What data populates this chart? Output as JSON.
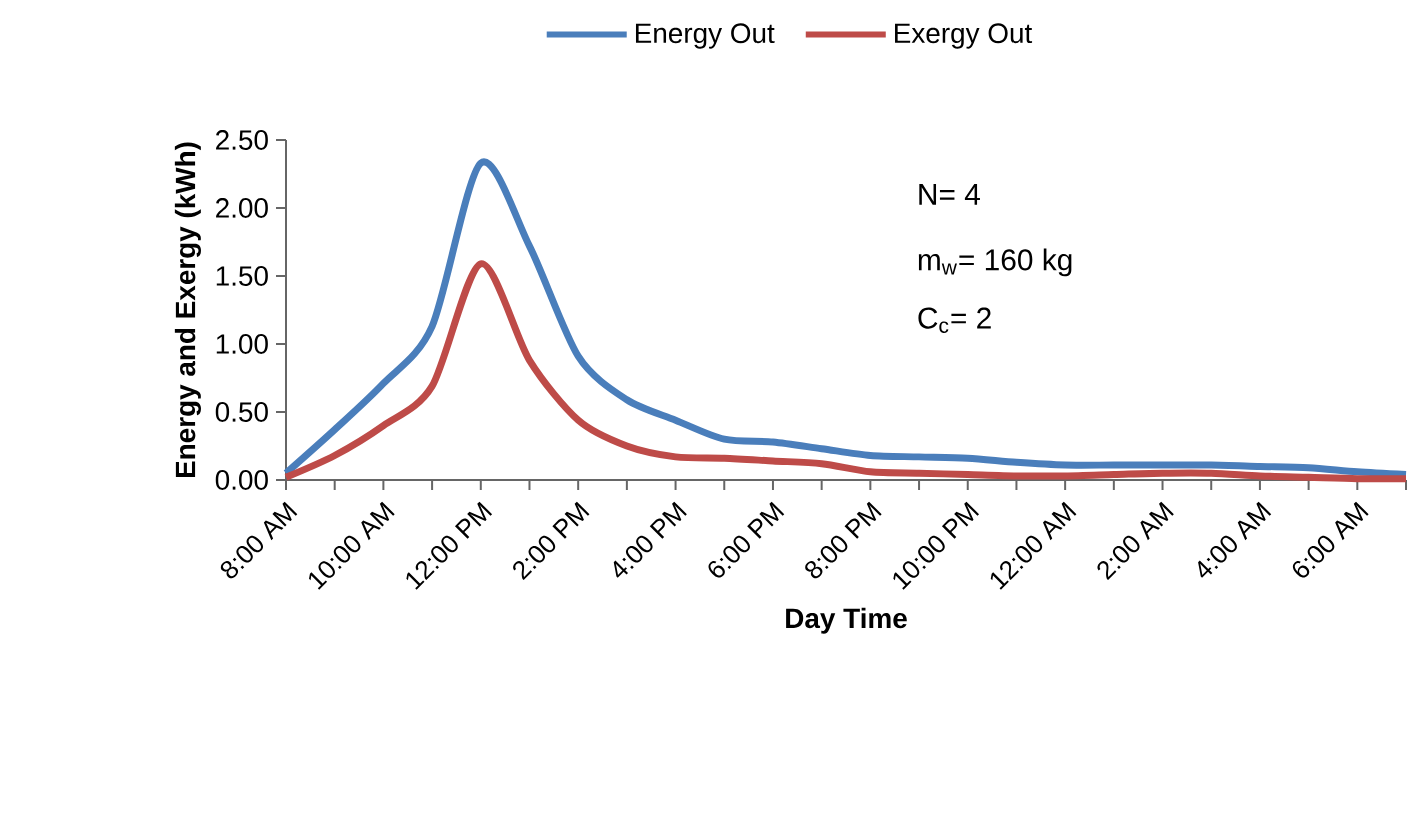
{
  "chart_data": {
    "type": "line",
    "categories": [
      "8:00 AM",
      null,
      "10:00 AM",
      null,
      "12:00 PM",
      null,
      "2:00 PM",
      null,
      "4:00 PM",
      null,
      "6:00 PM",
      null,
      "8:00 PM",
      null,
      "10:00 PM",
      null,
      "12:00 AM",
      null,
      "2:00 AM",
      null,
      "4:00 AM",
      null,
      "6:00 AM",
      null
    ],
    "series": [
      {
        "name": "Energy Out",
        "color": "#4a7ebb",
        "values": [
          0.05,
          0.37,
          0.71,
          1.13,
          2.33,
          1.72,
          0.91,
          0.59,
          0.44,
          0.3,
          0.28,
          0.23,
          0.18,
          0.17,
          0.16,
          0.13,
          0.11,
          0.11,
          0.11,
          0.11,
          0.1,
          0.09,
          0.06,
          0.04
        ]
      },
      {
        "name": "Exergy Out",
        "color": "#be4b48",
        "values": [
          0.02,
          0.18,
          0.4,
          0.69,
          1.59,
          0.88,
          0.44,
          0.25,
          0.17,
          0.16,
          0.14,
          0.12,
          0.06,
          0.05,
          0.04,
          0.03,
          0.03,
          0.04,
          0.05,
          0.05,
          0.03,
          0.02,
          0.01,
          0.01
        ]
      }
    ],
    "xlabel": "Day Time",
    "ylabel": "Energy and Exergy (kWh)",
    "ylim": [
      0,
      2.5
    ],
    "yticks": [
      {
        "value": 0,
        "label": "0.00"
      },
      {
        "value": 0.5,
        "label": "0.50"
      },
      {
        "value": 1,
        "label": "1.00"
      },
      {
        "value": 1.5,
        "label": "1.50"
      },
      {
        "value": 2,
        "label": "2.00"
      },
      {
        "value": 2.5,
        "label": "2.50"
      }
    ],
    "annotations": [
      "N= 4",
      "m$_{w}$= 160 kg",
      "C$_{c}$= 2"
    ],
    "legend": "top",
    "grid": false
  }
}
